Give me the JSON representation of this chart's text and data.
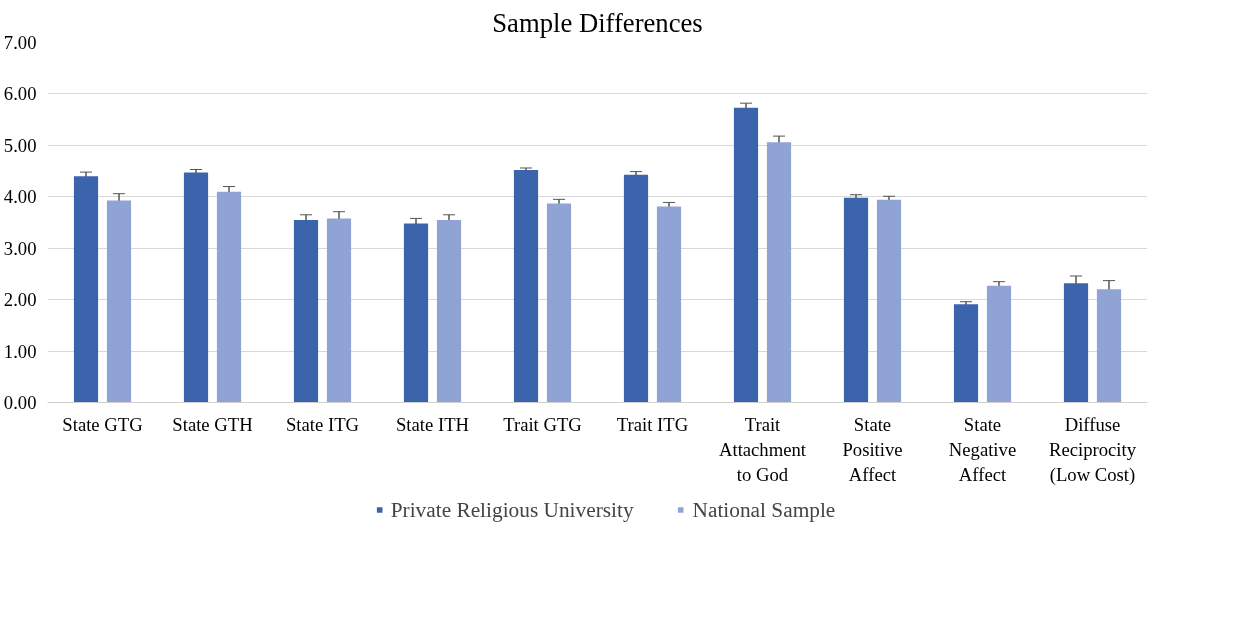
{
  "chart_data": {
    "type": "bar",
    "title": "Sample Differences",
    "categories": [
      "State GTG",
      "State GTH",
      "State ITG",
      "State ITH",
      "Trait GTG",
      "Trait ITG",
      "Trait Attachment to God",
      "State Positive Affect",
      "State Negative Affect",
      "Diffuse Reciprocity (Low Cost)"
    ],
    "series": [
      {
        "name": "Private Religious University",
        "color": "#3c64ac",
        "values": [
          4.4,
          4.47,
          3.55,
          3.48,
          4.52,
          4.43,
          5.73,
          3.98,
          1.91,
          2.32
        ],
        "errors": [
          0.08,
          0.06,
          0.1,
          0.1,
          0.04,
          0.06,
          0.09,
          0.06,
          0.05,
          0.14
        ]
      },
      {
        "name": "National Sample",
        "color": "#8fa4d4",
        "values": [
          3.93,
          4.1,
          3.58,
          3.55,
          3.87,
          3.81,
          5.06,
          3.94,
          2.27,
          2.2
        ],
        "errors": [
          0.13,
          0.1,
          0.13,
          0.1,
          0.08,
          0.08,
          0.12,
          0.07,
          0.08,
          0.17
        ]
      }
    ],
    "ylim": [
      0,
      7
    ],
    "yticks": [
      {
        "value": 0,
        "label": "0.00"
      },
      {
        "value": 1,
        "label": "1.00"
      },
      {
        "value": 2,
        "label": "2.00"
      },
      {
        "value": 3,
        "label": "3.00"
      },
      {
        "value": 4,
        "label": "4.00"
      },
      {
        "value": 5,
        "label": "5.00"
      },
      {
        "value": 6,
        "label": "6.00"
      },
      {
        "value": 7,
        "label": "7.00"
      }
    ],
    "grid": "y",
    "legend": "bottom"
  }
}
